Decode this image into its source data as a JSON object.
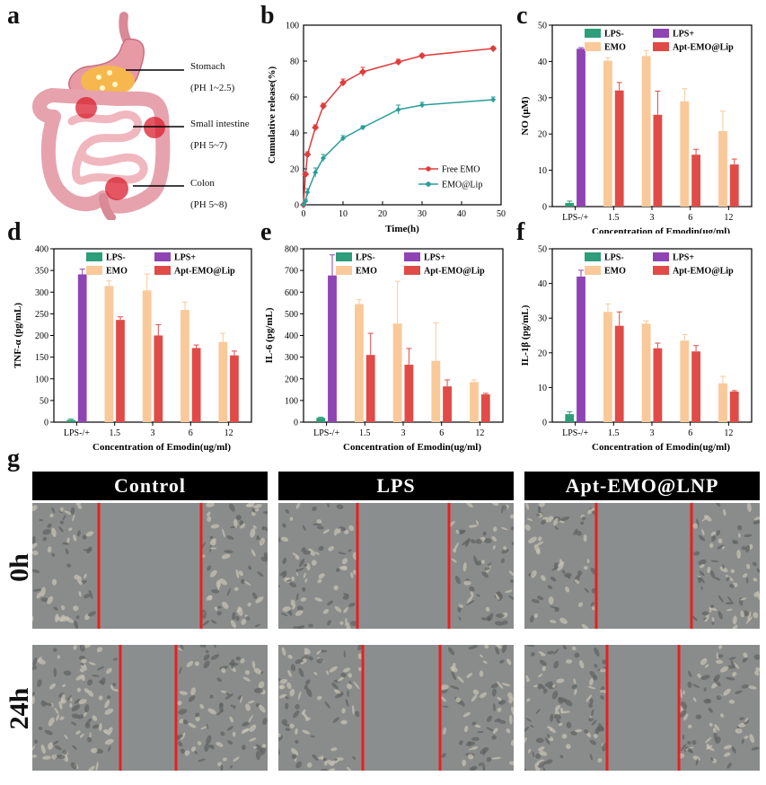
{
  "panel_letters": [
    "a",
    "b",
    "c",
    "d",
    "e",
    "f",
    "g"
  ],
  "panel_a": {
    "labels": [
      {
        "name": "Stomach",
        "ph": "(PH 1~2.5)"
      },
      {
        "name": "Small intestine",
        "ph": "(PH 5~7)"
      },
      {
        "name": "Colon",
        "ph": "(PH 5~8)"
      }
    ]
  },
  "colors": {
    "lps_minus": "#2e9d7a",
    "lps_plus": "#8e44b3",
    "emo": "#f9c99a",
    "apt": "#e04b47",
    "free_emo": "#e03c3c",
    "emo_lip": "#2a9d9a",
    "scratch_line": "#e8201f",
    "micro_bg": "#8a8c8c"
  },
  "chart_data": [
    {
      "id": "b",
      "type": "line",
      "xlabel": "Time(h)",
      "ylabel": "Cumulative release(%)",
      "xlim": [
        0,
        50
      ],
      "ylim": [
        0,
        100
      ],
      "xticks": [
        "0",
        "10",
        "20",
        "30",
        "40",
        "50"
      ],
      "yticks": [
        "0",
        "20",
        "40",
        "60",
        "80",
        "100"
      ],
      "legend_position": "bottom-right",
      "series": [
        {
          "name": "Free EMO",
          "x": [
            0,
            0.5,
            1,
            3,
            5,
            10,
            15,
            24,
            30,
            48
          ],
          "y": [
            0,
            17,
            28,
            43,
            55,
            68,
            74,
            79.5,
            83,
            87
          ],
          "err": [
            0,
            1,
            1.5,
            1.5,
            1.5,
            2,
            2.5,
            1.5,
            1,
            1
          ]
        },
        {
          "name": "EMO@Lip",
          "x": [
            0,
            0.5,
            1,
            3,
            5,
            10,
            15,
            24,
            30,
            48
          ],
          "y": [
            0,
            2,
            7,
            18,
            26,
            37,
            43,
            53,
            55.5,
            58.5
          ],
          "err": [
            0,
            1,
            2,
            2.5,
            2,
            1.5,
            1,
            2.5,
            1.5,
            1.5
          ]
        }
      ]
    },
    {
      "id": "c",
      "type": "bar",
      "ylabel": "NO (μM)",
      "xlabel": "Concentration of Emodin(ug/ml)",
      "ylim": [
        0,
        50
      ],
      "yticks": [
        "0",
        "10",
        "20",
        "30",
        "40",
        "50"
      ],
      "categories": [
        "LPS-/+",
        "1.5",
        "3",
        "6",
        "12"
      ],
      "legend": [
        "LPS-",
        "LPS+",
        "EMO",
        "Apt-EMO@Lip"
      ],
      "legend_position": "top",
      "control": {
        "lps_minus": 1.0,
        "lps_minus_err": 0.5,
        "lps_plus": 43.5,
        "lps_plus_err": 0.3
      },
      "emo": [
        40.2,
        41.5,
        29.0,
        20.8
      ],
      "emo_err": [
        0.8,
        1.5,
        3.5,
        5.5
      ],
      "apt": [
        32.0,
        25.3,
        14.3,
        11.6
      ],
      "apt_err": [
        2.2,
        6.5,
        1.5,
        1.5
      ]
    },
    {
      "id": "d",
      "type": "bar",
      "ylabel": "TNF-α (pg/mL)",
      "xlabel": "Concentration of Emodin(ug/ml)",
      "ylim": [
        0,
        400
      ],
      "yticks": [
        "0",
        "50",
        "100",
        "150",
        "200",
        "250",
        "300",
        "350",
        "400"
      ],
      "categories": [
        "LPS-/+",
        "1.5",
        "3",
        "6",
        "12"
      ],
      "legend": [
        "LPS-",
        "LPS+",
        "EMO",
        "Apt-EMO@Lip"
      ],
      "legend_position": "top",
      "control": {
        "lps_minus": 5,
        "lps_minus_err": 2,
        "lps_plus": 341,
        "lps_plus_err": 12
      },
      "emo": [
        314,
        304,
        259,
        185
      ],
      "emo_err": [
        12,
        38,
        18,
        20
      ],
      "apt": [
        236,
        200,
        171,
        154
      ],
      "apt_err": [
        7,
        25,
        7,
        10
      ]
    },
    {
      "id": "e",
      "type": "bar",
      "ylabel": "IL-6 (pg/mL)",
      "xlabel": "Concentration of Emodin(ug/ml)",
      "ylim": [
        0,
        800
      ],
      "yticks": [
        "0",
        "100",
        "200",
        "300",
        "400",
        "500",
        "600",
        "700",
        "800"
      ],
      "categories": [
        "LPS-/+",
        "1.5",
        "3",
        "6",
        "12"
      ],
      "legend": [
        "LPS-",
        "LPS+",
        "EMO",
        "Apt-EMO@Lip"
      ],
      "legend_position": "top",
      "control": {
        "lps_minus": 20,
        "lps_minus_err": 3,
        "lps_plus": 677,
        "lps_plus_err": 95
      },
      "emo": [
        545,
        455,
        283,
        185
      ],
      "emo_err": [
        20,
        195,
        175,
        10
      ],
      "apt": [
        310,
        265,
        165,
        128
      ],
      "apt_err": [
        100,
        75,
        30,
        5
      ]
    },
    {
      "id": "f",
      "type": "bar",
      "ylabel": "IL-1β (pg/mL)",
      "xlabel": "Concentration of Emodin(ug/ml)",
      "ylim": [
        0,
        50
      ],
      "yticks": [
        "0",
        "10",
        "20",
        "30",
        "40",
        "50"
      ],
      "categories": [
        "LPS-/+",
        "1.5",
        "3",
        "6",
        "12"
      ],
      "legend": [
        "LPS-",
        "LPS+",
        "EMO",
        "Apt-EMO@Lip"
      ],
      "legend_position": "top",
      "control": {
        "lps_minus": 2.3,
        "lps_minus_err": 0.7,
        "lps_plus": 42.0,
        "lps_plus_err": 1.8
      },
      "emo": [
        31.8,
        28.4,
        23.5,
        11.2
      ],
      "emo_err": [
        2.3,
        0.8,
        1.8,
        2.0
      ],
      "apt": [
        27.8,
        21.3,
        20.4,
        8.8
      ],
      "apt_err": [
        4.0,
        1.5,
        1.7,
        0.3
      ]
    }
  ],
  "panel_g": {
    "columns": [
      "Control",
      "LPS",
      "Apt-EMO@LNP"
    ],
    "rows": [
      "0h",
      "24h"
    ]
  }
}
